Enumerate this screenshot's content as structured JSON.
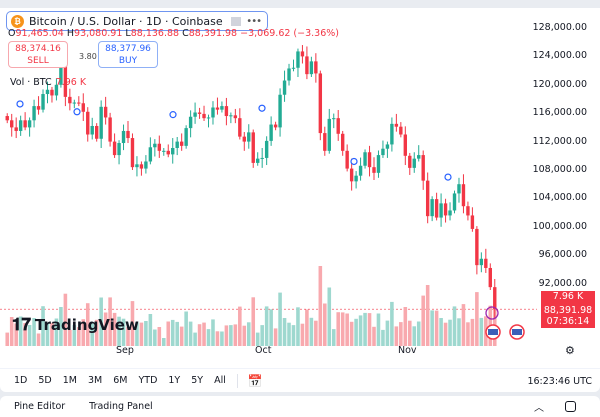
{
  "header": {
    "symbol_title": "Bitcoin / U.S. Dollar · 1D · Coinbase",
    "icon": "bitcoin-icon",
    "ohlc": {
      "o_label": "O",
      "o": "91,465.04",
      "h_label": "H",
      "h": "93,080.91",
      "l_label": "L",
      "l": "88,136.88",
      "c_label": "C",
      "c": "88,391.98",
      "change": "−3,069.62 (−3.36%)"
    },
    "sell_price": "88,374.16",
    "sell_label": "SELL",
    "spread": "3.80",
    "buy_price": "88,377.96",
    "buy_label": "BUY",
    "volume_label": "Vol · BTC",
    "volume_value": "7.96 K"
  },
  "price_axis": [
    "128,000.00",
    "124,000.00",
    "120,000.00",
    "116,000.00",
    "112,000.00",
    "108,000.00",
    "104,000.00",
    "100,000.00",
    "96,000.00",
    "92,000.00"
  ],
  "tags": {
    "volume": "7.96 K",
    "price": "88,391.98",
    "countdown": "07:36:14"
  },
  "time_axis": [
    "Sep",
    "Oct",
    "Nov"
  ],
  "logo": "TradingView",
  "toolbar": {
    "ranges": [
      "1D",
      "5D",
      "1M",
      "3M",
      "6M",
      "YTD",
      "1Y",
      "5Y",
      "All"
    ],
    "clock": "16:23:46 UTC"
  },
  "bottom_panel": {
    "tabs": [
      "Pine Editor",
      "Trading Panel"
    ]
  },
  "colors": {
    "up": "#22ab94",
    "down": "#f23645",
    "up_vol": "#9ed8cf",
    "down_vol": "#f8a9ae"
  },
  "chart_data": {
    "type": "candlestick",
    "ylim": [
      88000,
      128000
    ],
    "unit": "thousand USD",
    "closes": [
      115,
      114,
      113.5,
      115,
      114,
      115,
      117,
      116.5,
      118.7,
      119.3,
      118.5,
      120,
      123,
      118.3,
      117.4,
      117.5,
      117.4,
      116.2,
      113,
      114.2,
      112.4,
      116.9,
      115.4,
      112.0,
      110.1,
      111.8,
      113.5,
      112.5,
      108.4,
      108.8,
      108.2,
      109.2,
      111.2,
      111.7,
      110.7,
      110.7,
      110.2,
      111.1,
      112.0,
      111.4,
      113.9,
      115.5,
      116.1,
      115.9,
      115.3,
      115.4,
      116.8,
      116.5,
      117.0,
      115.6,
      115.7,
      115.3,
      112.7,
      112.0,
      113.3,
      109.0,
      109.6,
      109.7,
      112.1,
      114.4,
      114.0,
      118.6,
      120.6,
      122.3,
      122.4,
      124.7,
      124.0,
      121.5,
      123.3,
      121.6,
      113.2,
      110.7,
      115.2,
      115.3,
      113.1,
      110.7,
      108.2,
      106.4,
      107.2,
      108.6,
      110.5,
      108.4,
      107.6,
      110.1,
      111.0,
      111.6,
      114.5,
      114.1,
      113.0,
      110.0,
      108.3,
      109.6,
      110.1,
      106.5,
      101.5,
      103.9,
      101.3,
      103.3,
      101.6,
      102.3,
      104.7,
      106.0,
      102.9,
      101.6,
      99.7,
      94.6,
      95.5,
      94.2,
      91.5,
      88.4
    ]
  }
}
